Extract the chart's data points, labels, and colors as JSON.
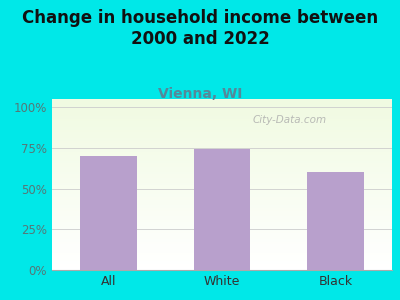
{
  "categories": [
    "All",
    "White",
    "Black"
  ],
  "values": [
    70.0,
    74.0,
    60.0
  ],
  "bar_color": "#b8a0cc",
  "title": "Change in household income between\n2000 and 2022",
  "subtitle": "Vienna, WI",
  "title_fontsize": 12,
  "subtitle_fontsize": 10,
  "title_color": "#111111",
  "subtitle_color": "#558899",
  "background_color": "#00e8e8",
  "ylabel_color": "#557777",
  "xlabel_color": "#333333",
  "yticks": [
    0,
    25,
    50,
    75,
    100
  ],
  "ylim": [
    0,
    105
  ],
  "watermark": "City-Data.com",
  "watermark_color": "#aaaaaa"
}
